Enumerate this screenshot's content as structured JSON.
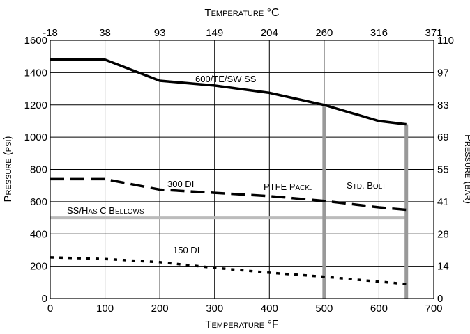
{
  "chart_data": {
    "type": "line",
    "x_axis_bottom": {
      "label": "Temperature °F",
      "range": [
        0,
        700
      ],
      "ticks": [
        0,
        100,
        200,
        300,
        400,
        500,
        600,
        700
      ]
    },
    "x_axis_top": {
      "label": "Temperature °C",
      "ticks": [
        "-18",
        "38",
        "93",
        "149",
        "204",
        "260",
        "316",
        "371"
      ]
    },
    "y_axis_left": {
      "label": "Pressure (psi)",
      "range": [
        0,
        1600
      ],
      "ticks": [
        0,
        200,
        400,
        600,
        800,
        1000,
        1200,
        1400,
        1600
      ]
    },
    "y_axis_right": {
      "label": "Pressure (bar)",
      "ticks": [
        "0",
        "14",
        "28",
        "41",
        "55",
        "69",
        "83",
        "97",
        "110"
      ]
    },
    "grid": true,
    "series": [
      {
        "name": "600/TE/SW SS",
        "style": "solid",
        "color": "#000000",
        "x": [
          0,
          100,
          200,
          300,
          400,
          500,
          600,
          650
        ],
        "y": [
          1480,
          1480,
          1350,
          1320,
          1275,
          1200,
          1100,
          1080
        ]
      },
      {
        "name": "300 DI",
        "style": "dashed",
        "color": "#000000",
        "x": [
          0,
          100,
          200,
          300,
          400,
          500,
          600,
          650
        ],
        "y": [
          740,
          740,
          675,
          655,
          635,
          605,
          565,
          550
        ]
      },
      {
        "name": "150 DI",
        "style": "dotted",
        "color": "#000000",
        "x": [
          0,
          100,
          200,
          300,
          400,
          500,
          600,
          650
        ],
        "y": [
          255,
          245,
          225,
          190,
          160,
          135,
          105,
          90
        ]
      }
    ],
    "limits": [
      {
        "name": "SS/Has C Bellows",
        "orientation": "horizontal",
        "y": 500,
        "x_range": [
          0,
          650
        ],
        "color": "#bbbbbb"
      },
      {
        "name": "PTFE Pack.",
        "orientation": "vertical",
        "x": 500,
        "y_range": [
          0,
          1200
        ],
        "color": "#999999"
      },
      {
        "name": "Std. Bolt",
        "orientation": "vertical",
        "x": 650,
        "y_range": [
          0,
          1080
        ],
        "color": "#999999"
      }
    ]
  }
}
